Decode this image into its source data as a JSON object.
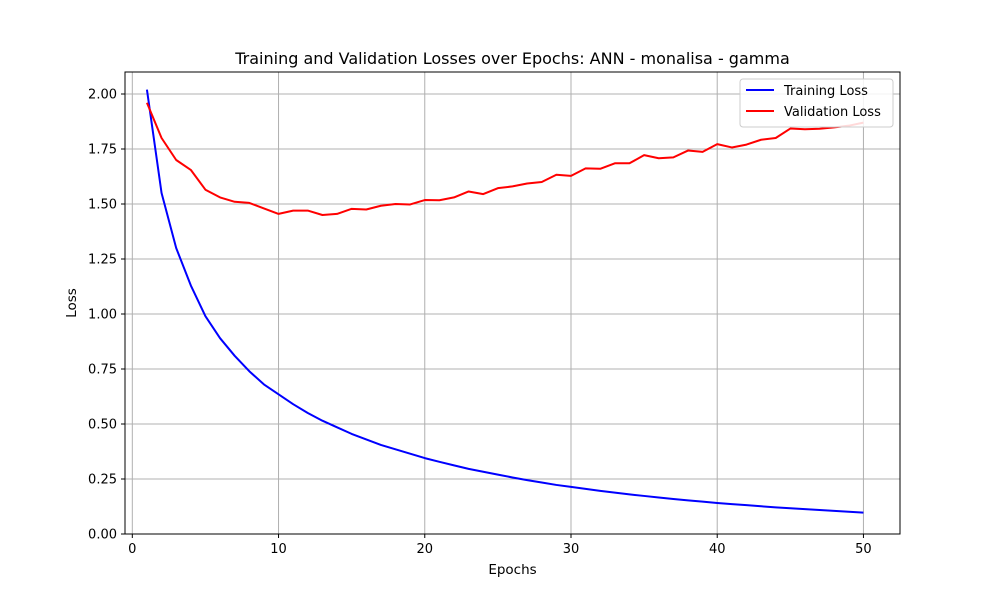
{
  "chart_data": {
    "type": "line",
    "title": "Training and Validation Losses over Epochs: ANN - monalisa - gamma",
    "xlabel": "Epochs",
    "ylabel": "Loss",
    "xlim": [
      -0.5,
      52.5
    ],
    "ylim": [
      0,
      2.1
    ],
    "xticks": [
      0,
      10,
      20,
      30,
      40,
      50
    ],
    "xtick_labels": [
      "0",
      "10",
      "20",
      "30",
      "40",
      "50"
    ],
    "yticks": [
      0,
      0.25,
      0.5,
      0.75,
      1.0,
      1.25,
      1.5,
      1.75,
      2.0
    ],
    "ytick_labels": [
      "0.00",
      "0.25",
      "0.50",
      "0.75",
      "1.00",
      "1.25",
      "1.50",
      "1.75",
      "2.00"
    ],
    "grid": true,
    "legend_position": "top-right",
    "x": [
      1,
      2,
      3,
      4,
      5,
      6,
      7,
      8,
      9,
      10,
      11,
      12,
      13,
      14,
      15,
      16,
      17,
      18,
      19,
      20,
      21,
      22,
      23,
      24,
      25,
      26,
      27,
      28,
      29,
      30,
      31,
      32,
      33,
      34,
      35,
      36,
      37,
      38,
      39,
      40,
      41,
      42,
      43,
      44,
      45,
      46,
      47,
      48,
      49,
      50
    ],
    "series": [
      {
        "name": "Training Loss",
        "color": "#0000ff",
        "values": [
          2.02,
          1.55,
          1.3,
          1.13,
          0.99,
          0.89,
          0.81,
          0.74,
          0.68,
          0.635,
          0.59,
          0.55,
          0.515,
          0.485,
          0.455,
          0.43,
          0.405,
          0.385,
          0.365,
          0.345,
          0.328,
          0.312,
          0.296,
          0.283,
          0.27,
          0.257,
          0.245,
          0.234,
          0.223,
          0.214,
          0.205,
          0.196,
          0.188,
          0.18,
          0.173,
          0.166,
          0.159,
          0.153,
          0.147,
          0.141,
          0.136,
          0.131,
          0.126,
          0.121,
          0.117,
          0.113,
          0.109,
          0.105,
          0.101,
          0.097
        ]
      },
      {
        "name": "Validation Loss",
        "color": "#ff0000",
        "values": [
          1.96,
          1.8,
          1.7,
          1.655,
          1.565,
          1.53,
          1.51,
          1.505,
          1.48,
          1.455,
          1.47,
          1.47,
          1.45,
          1.455,
          1.478,
          1.475,
          1.492,
          1.5,
          1.498,
          1.518,
          1.517,
          1.53,
          1.557,
          1.545,
          1.572,
          1.58,
          1.593,
          1.6,
          1.633,
          1.628,
          1.662,
          1.66,
          1.685,
          1.685,
          1.722,
          1.708,
          1.712,
          1.743,
          1.737,
          1.772,
          1.757,
          1.77,
          1.792,
          1.8,
          1.843,
          1.84,
          1.842,
          1.848,
          1.856,
          1.87
        ]
      }
    ]
  }
}
